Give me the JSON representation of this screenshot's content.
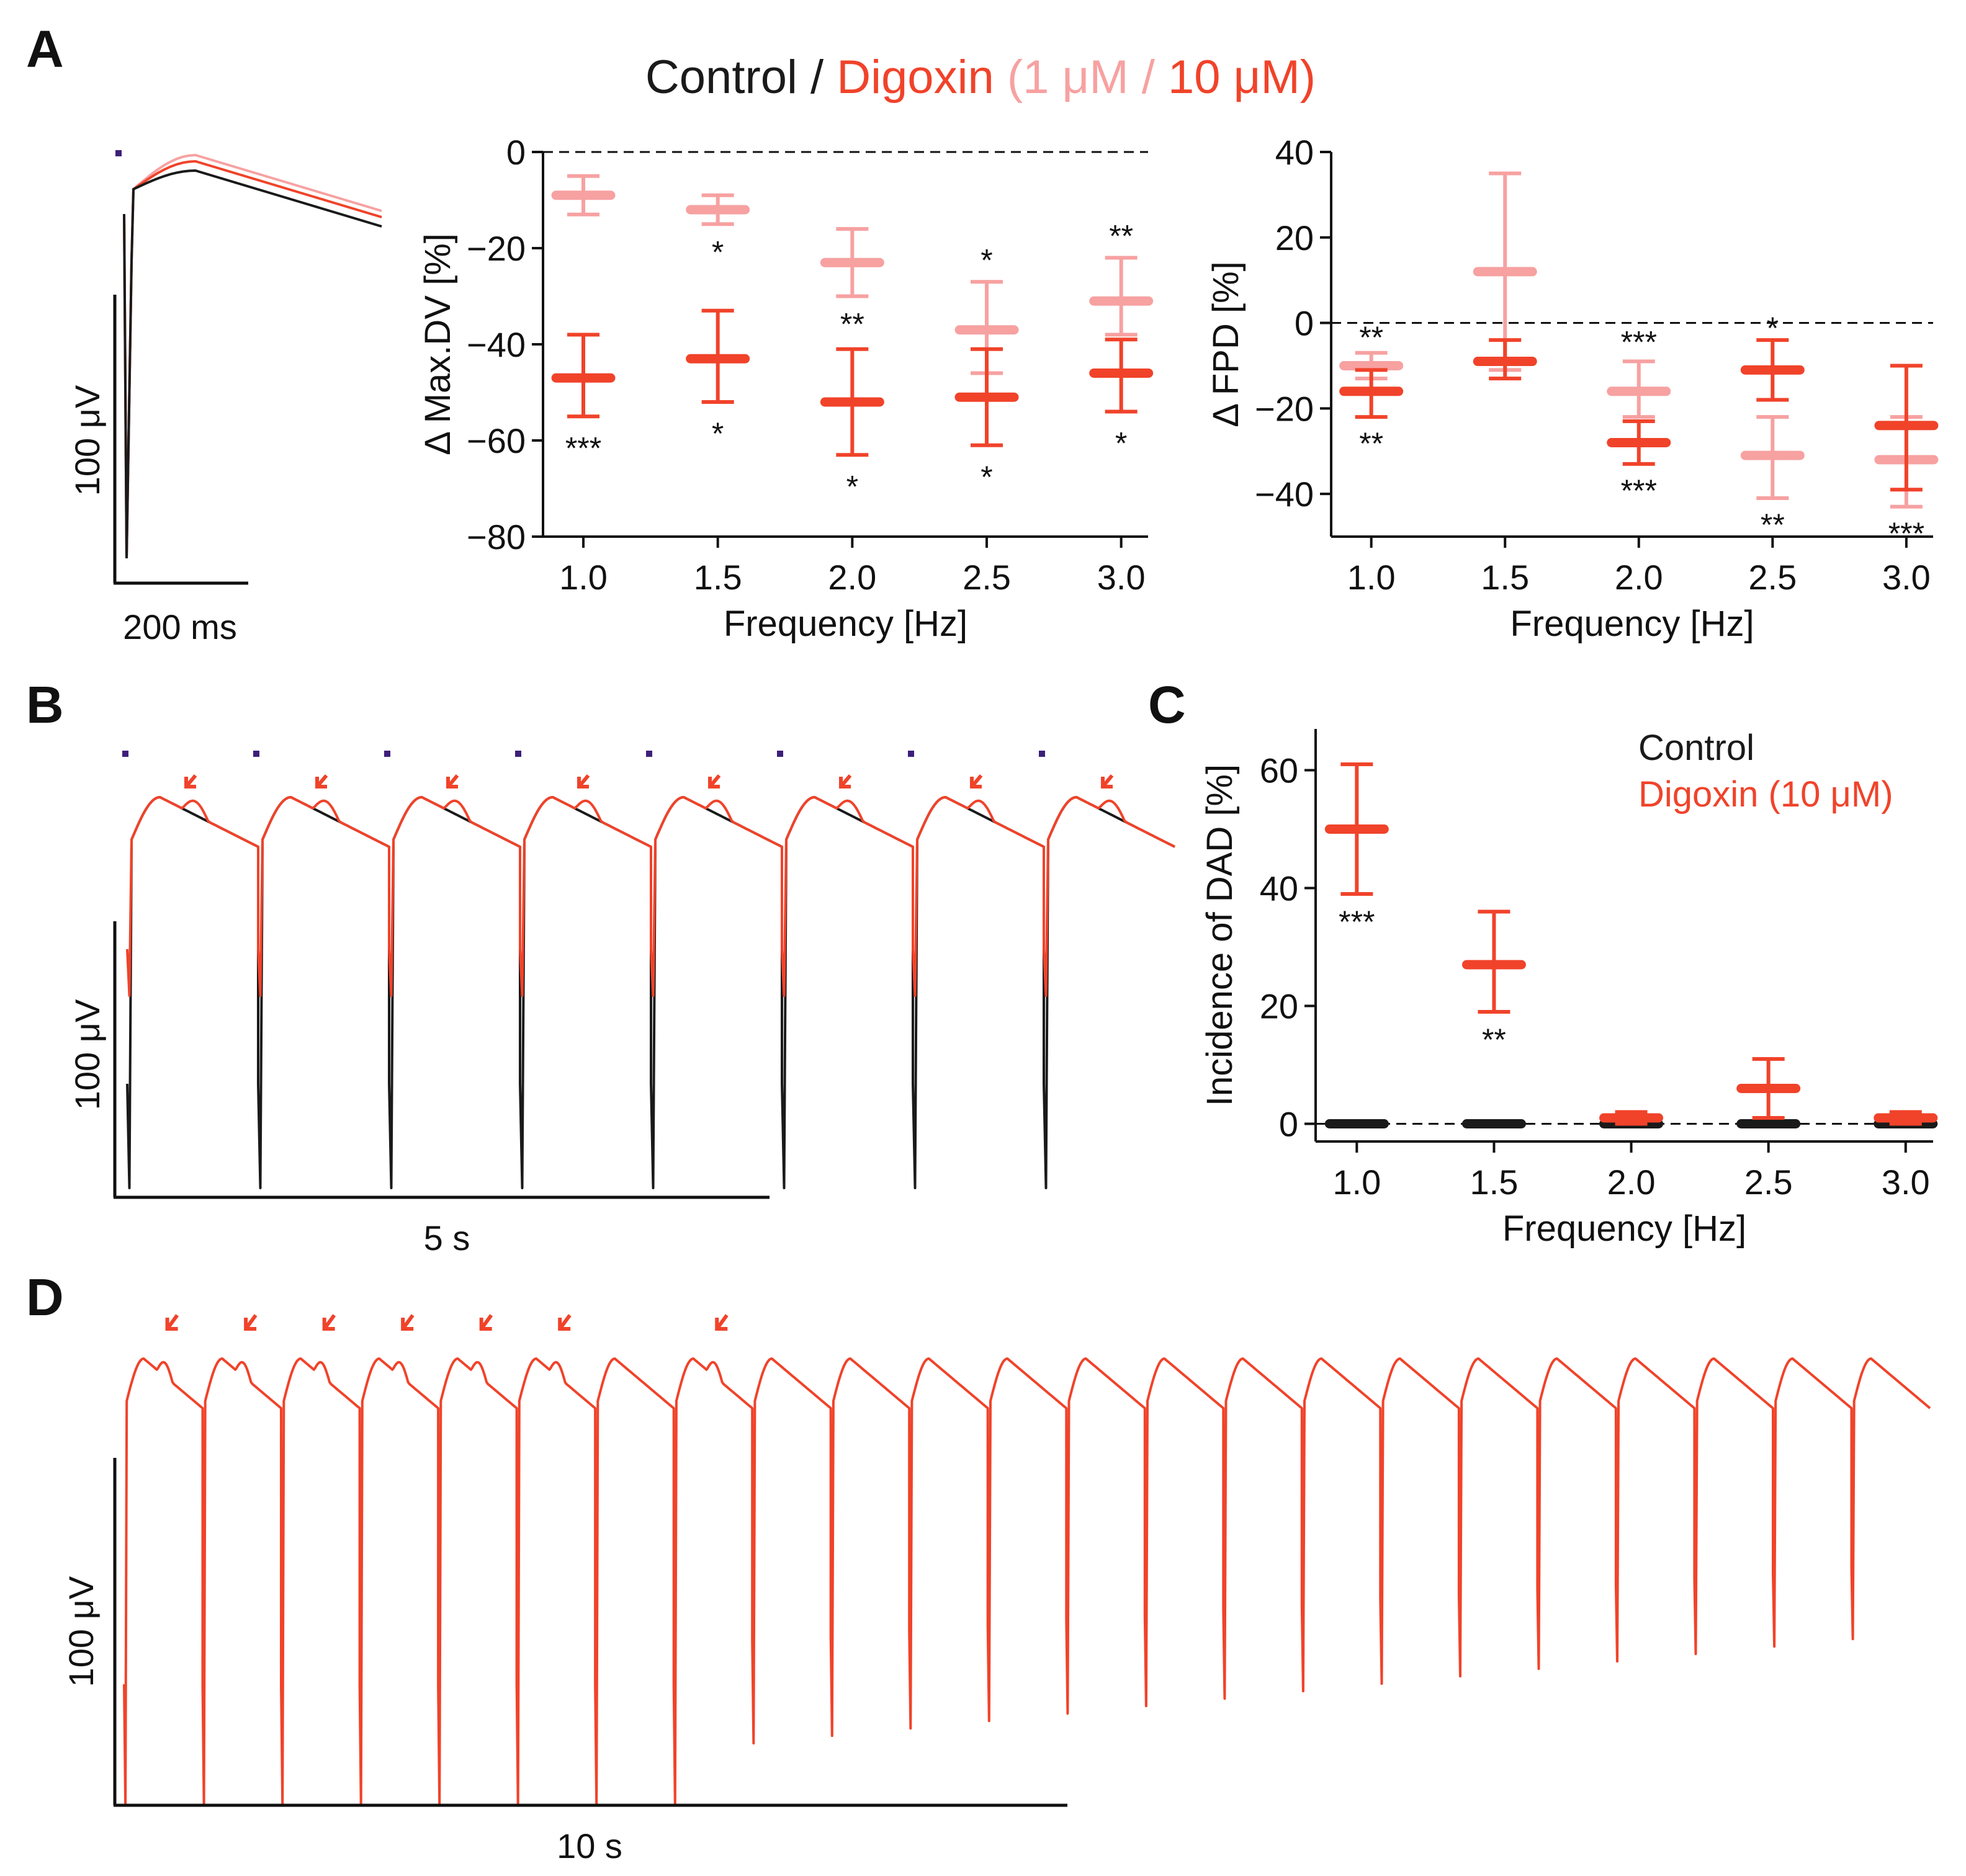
{
  "colors": {
    "control": "#1a1a1a",
    "digoxin_10": "#f0432a",
    "digoxin_1": "#f7a1a1",
    "stim_marker": "#3d1f7a"
  },
  "title": {
    "control": "Control",
    "slash": " / ",
    "digoxin": "Digoxin",
    "open_paren": " (",
    "low": "1 μM",
    "sep": " / ",
    "high": "10 μM",
    "close_paren": ")"
  },
  "panels": {
    "A": {
      "letter": "A",
      "scalebar": {
        "y_label": "100 μV",
        "x_label": "200 ms"
      }
    },
    "B": {
      "letter": "B",
      "scalebar": {
        "y_label": "100 μV",
        "x_label": "5 s"
      }
    },
    "C": {
      "letter": "C",
      "legend": {
        "control": "Control",
        "digoxin": "Digoxin (10 μM)"
      }
    },
    "D": {
      "letter": "D",
      "scalebar": {
        "y_label": "100 μV",
        "x_label": "10 s"
      }
    }
  },
  "chart_data": [
    {
      "id": "A-maxdv",
      "type": "scatter",
      "title": "",
      "xlabel": "Frequency [Hz]",
      "ylabel": "Δ Max.DV [%]",
      "categories": [
        "1.0",
        "1.5",
        "2.0",
        "2.5",
        "3.0"
      ],
      "x": [
        1.0,
        1.5,
        2.0,
        2.5,
        3.0
      ],
      "xlim": [
        0.85,
        3.1
      ],
      "ylim": [
        -80,
        0
      ],
      "yticks": [
        0,
        -20,
        -40,
        -60,
        -80
      ],
      "ytick_labels": [
        "0",
        "−20",
        "−40",
        "−60",
        "−80"
      ],
      "zero_line": true,
      "series": [
        {
          "name": "Digoxin (1 μM)",
          "color_key": "digoxin_1",
          "values": [
            -9,
            -12,
            -23,
            -37,
            -31
          ],
          "err_lo": [
            -13,
            -15,
            -30,
            -46,
            -38
          ],
          "err_hi": [
            -5,
            -9,
            -16,
            -27,
            -22
          ],
          "stars": [
            "",
            "*",
            "**",
            "*",
            "**"
          ]
        },
        {
          "name": "Digoxin (10 μM)",
          "color_key": "digoxin_10",
          "values": [
            -47,
            -43,
            -52,
            -51,
            -46
          ],
          "err_lo": [
            -55,
            -52,
            -63,
            -61,
            -54
          ],
          "err_hi": [
            -38,
            -33,
            -41,
            -41,
            -39
          ],
          "stars": [
            "***",
            "*",
            "*",
            "*",
            "*"
          ]
        }
      ]
    },
    {
      "id": "A-fpd",
      "type": "scatter",
      "title": "",
      "xlabel": "Frequency [Hz]",
      "ylabel": "Δ FPD [%]",
      "categories": [
        "1.0",
        "1.5",
        "2.0",
        "2.5",
        "3.0"
      ],
      "x": [
        1.0,
        1.5,
        2.0,
        2.5,
        3.0
      ],
      "xlim": [
        0.85,
        3.1
      ],
      "ylim": [
        -50,
        40
      ],
      "yticks": [
        40,
        20,
        0,
        -20,
        -40
      ],
      "ytick_labels": [
        "40",
        "20",
        "0",
        "−20",
        "−40"
      ],
      "zero_line": true,
      "series": [
        {
          "name": "Digoxin (1 μM)",
          "color_key": "digoxin_1",
          "values": [
            -10,
            12,
            -16,
            -31,
            -32
          ],
          "err_lo": [
            -13,
            -11,
            -22,
            -41,
            -43
          ],
          "err_hi": [
            -7,
            35,
            -9,
            -22,
            -22
          ],
          "stars": [
            "**",
            "",
            "***",
            "**",
            "***"
          ]
        },
        {
          "name": "Digoxin (10 μM)",
          "color_key": "digoxin_10",
          "values": [
            -16,
            -9,
            -28,
            -11,
            -24
          ],
          "err_lo": [
            -22,
            -13,
            -33,
            -18,
            -39
          ],
          "err_hi": [
            -11,
            -4,
            -23,
            -4,
            -10
          ],
          "stars": [
            "**",
            "",
            "***",
            "*",
            ""
          ]
        }
      ]
    },
    {
      "id": "C-dad",
      "type": "scatter",
      "title": "",
      "xlabel": "Frequency [Hz]",
      "ylabel": "Incidence of DAD [%]",
      "categories": [
        "1.0",
        "1.5",
        "2.0",
        "2.5",
        "3.0"
      ],
      "x": [
        1.0,
        1.5,
        2.0,
        2.5,
        3.0
      ],
      "xlim": [
        0.85,
        3.1
      ],
      "ylim": [
        -3,
        67
      ],
      "yticks": [
        0,
        20,
        40,
        60
      ],
      "ytick_labels": [
        "0",
        "20",
        "40",
        "60"
      ],
      "zero_line": true,
      "series": [
        {
          "name": "Control",
          "color_key": "control",
          "values": [
            0,
            0,
            0,
            0,
            0
          ],
          "err_lo": [
            0,
            0,
            0,
            0,
            0
          ],
          "err_hi": [
            0,
            0,
            0,
            0,
            0
          ],
          "stars": [
            "",
            "",
            "",
            "",
            ""
          ]
        },
        {
          "name": "Digoxin (10 μM)",
          "color_key": "digoxin_10",
          "values": [
            50,
            27,
            1,
            6,
            1
          ],
          "err_lo": [
            39,
            19,
            0,
            1,
            0
          ],
          "err_hi": [
            61,
            36,
            2,
            11,
            2
          ],
          "stars": [
            "***",
            "**",
            "",
            "",
            ""
          ]
        }
      ]
    }
  ]
}
